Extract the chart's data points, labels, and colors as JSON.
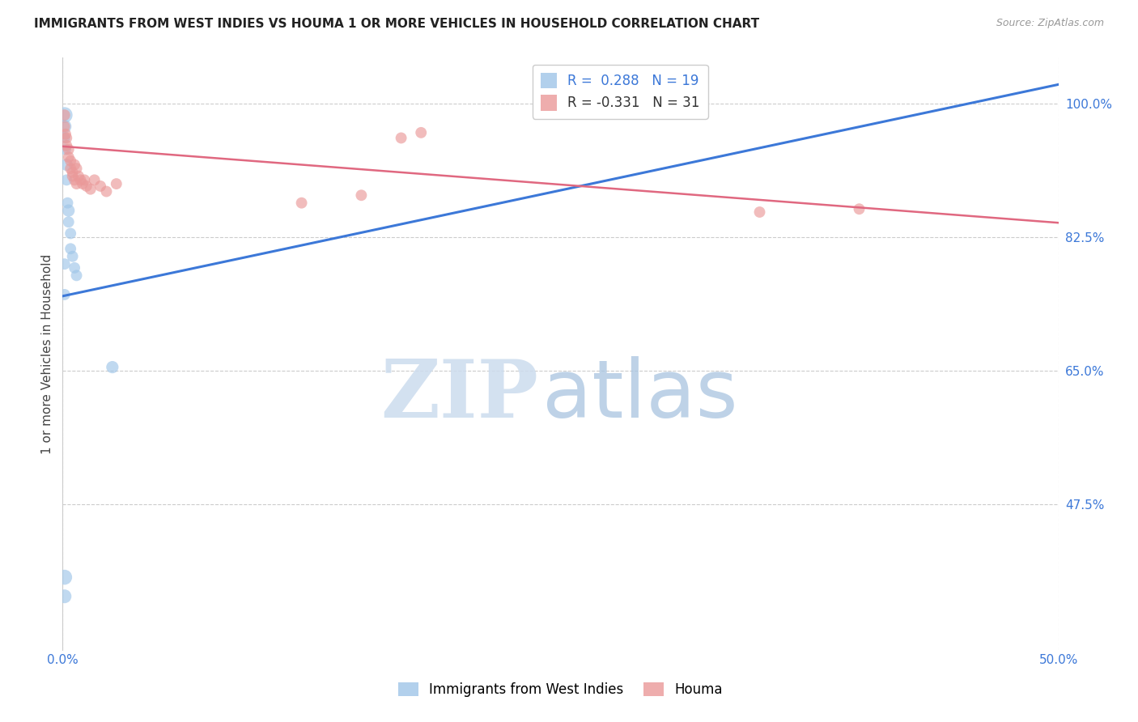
{
  "title": "IMMIGRANTS FROM WEST INDIES VS HOUMA 1 OR MORE VEHICLES IN HOUSEHOLD CORRELATION CHART",
  "source": "Source: ZipAtlas.com",
  "ylabel": "1 or more Vehicles in Household",
  "ytick_labels": [
    "100.0%",
    "82.5%",
    "65.0%",
    "47.5%"
  ],
  "yticks": [
    1.0,
    0.825,
    0.65,
    0.475
  ],
  "xtick_labels": [
    "0.0%",
    "50.0%"
  ],
  "xtick_positions": [
    0.0,
    0.5
  ],
  "legend_blue_r": "R =  0.288",
  "legend_blue_n": "N = 19",
  "legend_pink_r": "R = -0.331",
  "legend_pink_n": "N = 31",
  "legend_blue_label": "Immigrants from West Indies",
  "legend_pink_label": "Houma",
  "blue_color": "#9fc5e8",
  "pink_color": "#ea9999",
  "blue_line_color": "#3c78d8",
  "pink_line_color": "#e06880",
  "background_color": "#ffffff",
  "xmin": 0.0,
  "xmax": 0.5,
  "ymin": 0.285,
  "ymax": 1.06,
  "blue_points_x": [
    0.001,
    0.001,
    0.001,
    0.0015,
    0.002,
    0.002,
    0.0025,
    0.003,
    0.003,
    0.004,
    0.004,
    0.005,
    0.006,
    0.007,
    0.001,
    0.001,
    0.001,
    0.025,
    0.001
  ],
  "blue_points_y": [
    0.985,
    0.97,
    0.955,
    0.94,
    0.92,
    0.9,
    0.87,
    0.86,
    0.845,
    0.83,
    0.81,
    0.8,
    0.785,
    0.775,
    0.75,
    0.38,
    0.355,
    0.655,
    0.79
  ],
  "blue_sizes": [
    200,
    150,
    100,
    100,
    120,
    100,
    100,
    120,
    100,
    100,
    100,
    100,
    100,
    100,
    100,
    180,
    150,
    120,
    100
  ],
  "pink_points_x": [
    0.001,
    0.001,
    0.0015,
    0.002,
    0.002,
    0.003,
    0.003,
    0.004,
    0.004,
    0.005,
    0.005,
    0.006,
    0.006,
    0.007,
    0.007,
    0.008,
    0.009,
    0.01,
    0.011,
    0.012,
    0.014,
    0.016,
    0.019,
    0.022,
    0.027,
    0.12,
    0.15,
    0.35,
    0.4,
    0.18,
    0.17
  ],
  "pink_points_y": [
    0.985,
    0.97,
    0.96,
    0.955,
    0.945,
    0.94,
    0.93,
    0.925,
    0.915,
    0.91,
    0.905,
    0.92,
    0.9,
    0.915,
    0.895,
    0.905,
    0.9,
    0.895,
    0.9,
    0.892,
    0.888,
    0.9,
    0.892,
    0.885,
    0.895,
    0.87,
    0.88,
    0.858,
    0.862,
    0.962,
    0.955
  ],
  "pink_sizes": [
    100,
    100,
    100,
    100,
    100,
    100,
    100,
    100,
    100,
    100,
    100,
    100,
    100,
    100,
    100,
    100,
    100,
    100,
    100,
    100,
    100,
    100,
    100,
    100,
    100,
    100,
    100,
    100,
    100,
    100,
    100
  ],
  "blue_trend_x": [
    0.0,
    0.5
  ],
  "blue_trend_y": [
    0.748,
    1.025
  ],
  "pink_trend_x": [
    0.0,
    0.5
  ],
  "pink_trend_y": [
    0.944,
    0.844
  ],
  "watermark_color_zip": "#ccdcee",
  "watermark_color_atlas": "#a8c4e0",
  "title_fontsize": 11,
  "source_fontsize": 9,
  "tick_fontsize": 11,
  "ylabel_fontsize": 11,
  "legend_fontsize": 12
}
